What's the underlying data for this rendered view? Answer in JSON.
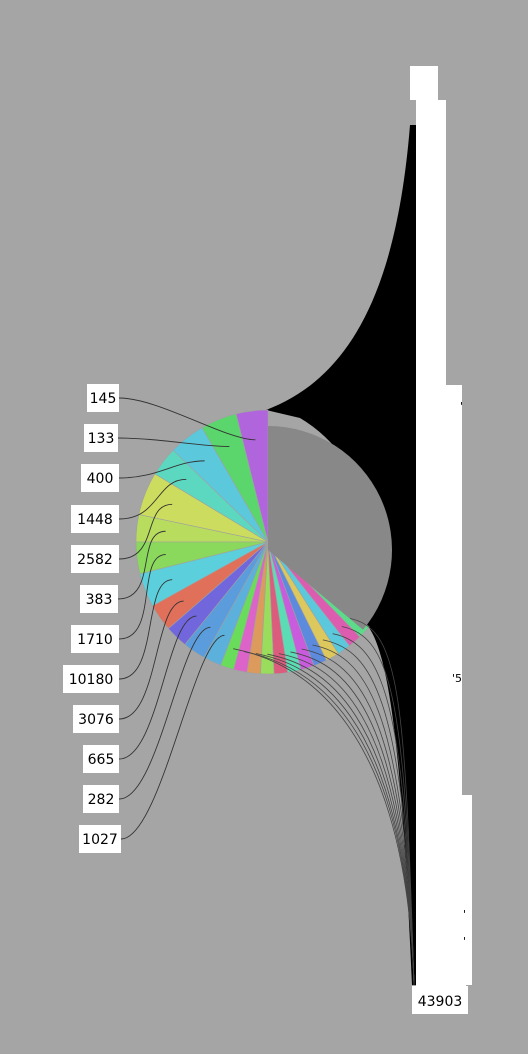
{
  "chart_data": {
    "type": "pie",
    "title": "",
    "labeled_slices": [
      {
        "label": "145",
        "value": 145,
        "color": "#b065dc"
      },
      {
        "label": "133",
        "value": 133,
        "color": "#5bd66c"
      },
      {
        "label": "400",
        "value": 400,
        "color": "#5bc8dc"
      },
      {
        "label": "1448",
        "value": 1448,
        "color": "#5dd8c0"
      },
      {
        "label": "2582",
        "value": 2582,
        "color": "#ccdc5e"
      },
      {
        "label": "383",
        "value": 383,
        "color": "#b8dc5e"
      },
      {
        "label": "1710",
        "value": 1710,
        "color": "#8ad85c"
      },
      {
        "label": "10180",
        "value": 10180,
        "color": "#5bd0dc"
      },
      {
        "label": "3076",
        "value": 3076,
        "color": "#e0705a"
      },
      {
        "label": "665",
        "value": 665,
        "color": "#7266dc"
      },
      {
        "label": "282",
        "value": 282,
        "color": "#5b9cdc"
      },
      {
        "label": "1027",
        "value": 1027,
        "color": "#5bb0dc"
      }
    ],
    "small_slice_colors": [
      "#6adc5c",
      "#dc64c8",
      "#dc9a5c",
      "#9adc5c",
      "#dc5c7e",
      "#5cdcb4",
      "#c85cdc",
      "#5c8adc",
      "#dcc85c",
      "#5cc8dc",
      "#dc5cb0",
      "#5cdc8a"
    ],
    "big_slice": {
      "label": "43903",
      "value": 43903,
      "color": "#888888"
    },
    "bar_fragments": [
      "'",
      "'5",
      "'",
      "'"
    ]
  }
}
